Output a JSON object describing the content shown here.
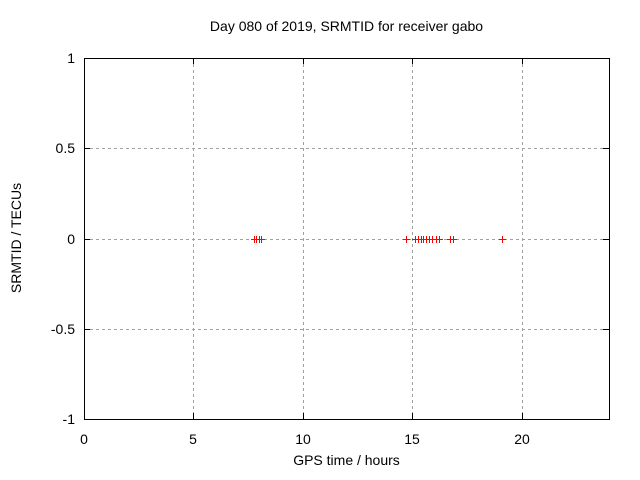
{
  "page": {
    "background": "#ffffff"
  },
  "chart_data": {
    "type": "scatter",
    "title": "Day 080 of 2019, SRMTID for receiver gabo",
    "xlabel": "GPS time / hours",
    "ylabel": "SRMTID / TECUs",
    "xlim": [
      0,
      24
    ],
    "ylim": [
      -1,
      1
    ],
    "xticks": [
      0,
      5,
      10,
      15,
      20
    ],
    "xtick_labels": [
      "0",
      "5",
      "10",
      "15",
      "20"
    ],
    "yticks": [
      -1,
      -0.5,
      0,
      0.5,
      1
    ],
    "ytick_labels": [
      "-1",
      "-0.5",
      "0",
      "0.5",
      "1"
    ],
    "grid": true,
    "grid_style": "dashed",
    "legend_position": "none",
    "marker": "plus",
    "marker_color": "#ff0000",
    "grid_color": "#a0a0a0",
    "axis_color": "#000000",
    "series": [
      {
        "name": "SRMTID",
        "x": [
          7.75,
          7.86,
          7.98,
          8.09,
          14.72,
          15.13,
          15.27,
          15.41,
          15.5,
          15.63,
          15.77,
          15.91,
          16.09,
          16.23,
          16.73,
          16.87,
          19.1
        ],
        "y": [
          -0.005,
          -0.005,
          -0.005,
          -0.005,
          -0.005,
          -0.005,
          -0.005,
          -0.005,
          -0.005,
          -0.005,
          -0.005,
          -0.005,
          -0.005,
          -0.005,
          -0.005,
          -0.005,
          -0.005
        ]
      }
    ]
  }
}
